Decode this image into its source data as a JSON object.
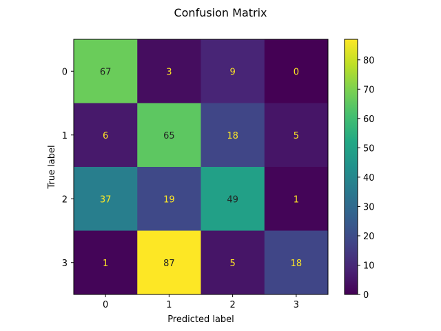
{
  "chart_data": {
    "type": "heatmap",
    "title": "Confusion Matrix",
    "xlabel": "Predicted label",
    "ylabel": "True label",
    "x_ticks": [
      "0",
      "1",
      "2",
      "3"
    ],
    "y_ticks": [
      "0",
      "1",
      "2",
      "3"
    ],
    "matrix": [
      [
        67,
        3,
        9,
        0
      ],
      [
        6,
        65,
        18,
        5
      ],
      [
        37,
        19,
        49,
        1
      ],
      [
        1,
        87,
        5,
        18
      ]
    ],
    "colormap": "viridis",
    "colorbar": {
      "vmin": 0,
      "vmax": 87,
      "ticks": [
        0,
        10,
        20,
        30,
        40,
        50,
        60,
        70,
        80
      ]
    },
    "cell_text_colors": {
      "on_dark": "#fde725",
      "on_light": "#222222"
    }
  }
}
